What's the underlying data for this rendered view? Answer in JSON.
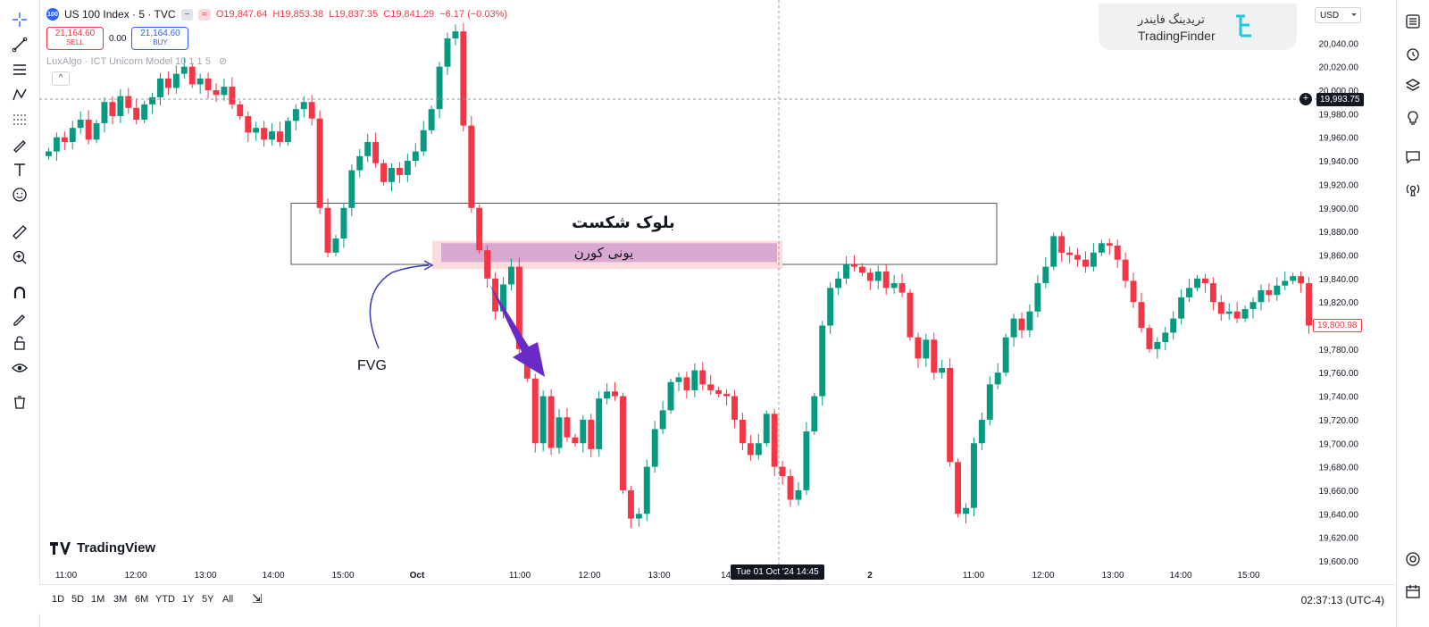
{
  "header": {
    "symbol_badge": "100",
    "title": "US 100 Index · 5 · TVC",
    "open": "O19,847.64",
    "high": "H19,853.38",
    "low": "L19,837.35",
    "close": "C19,841.29",
    "change": "−6.17 (−0.03%)"
  },
  "trade": {
    "sell_price": "21,164.60",
    "sell_label": "SELL",
    "spread": "0.00",
    "buy_price": "21,164.60",
    "buy_label": "BUY"
  },
  "indicator": {
    "label": "LuxAlgo · ICT Unicorn Model 10 1 1 5"
  },
  "brand": {
    "fa": "تریدینگ فایندر",
    "en": "TradingFinder"
  },
  "currency": "USD",
  "tv_logo": "TradingView",
  "bottom": {
    "ranges": [
      "1D",
      "5D",
      "1M",
      "3M",
      "6M",
      "YTD",
      "1Y",
      "5Y",
      "All"
    ],
    "clock": "02:37:13 (UTC-4)"
  },
  "crosshair_time": "Tue 01 Oct '24   14:45",
  "current_price_badge": "19,993.75",
  "last_price_badge": "19,800.98",
  "colors": {
    "up": "#089981",
    "down": "#f23645",
    "zone": "#d9a8d0",
    "arrow": "#6a2ac8"
  },
  "chart_data": {
    "type": "candlestick",
    "symbol": "US 100 Index",
    "interval": "5",
    "ylim": [
      19600,
      20060
    ],
    "y_ticks": [
      "20,040.00",
      "20,020.00",
      "20,000.00",
      "19,980.00",
      "19,960.00",
      "19,940.00",
      "19,920.00",
      "19,900.00",
      "19,880.00",
      "19,860.00",
      "19,840.00",
      "19,820.00",
      "19,800.00",
      "19,780.00",
      "19,760.00",
      "19,740.00",
      "19,720.00",
      "19,700.00",
      "19,680.00",
      "19,660.00",
      "19,640.00",
      "19,620.00",
      "19,600.00"
    ],
    "x_ticks": [
      "11:00",
      "12:00",
      "13:00",
      "14:00",
      "15:00",
      "Oct",
      "11:00",
      "12:00",
      "13:00",
      "14:",
      "2",
      "11:00",
      "12:00",
      "13:00",
      "14:00",
      "15:00"
    ],
    "annotations": {
      "breaker_block": "بلوک شکست",
      "unicorn_zone": "یونی کورن",
      "fvg": "FVG"
    },
    "closes": [
      19948,
      19960,
      19956,
      19968,
      19975,
      19958,
      19972,
      19990,
      19978,
      19995,
      19985,
      19975,
      19988,
      19994,
      20010,
      20002,
      20014,
      20020,
      20005,
      20010,
      20000,
      19996,
      20003,
      19988,
      19978,
      19964,
      19968,
      19958,
      19965,
      19956,
      19974,
      19984,
      19990,
      19976,
      19900,
      19862,
      19874,
      19900,
      19932,
      19944,
      19956,
      19938,
      19922,
      19934,
      19928,
      19940,
      19948,
      19966,
      19984,
      20020,
      20044,
      20050,
      19970,
      19900,
      19864,
      19840,
      19812,
      19835,
      19850,
      19780,
      19755,
      19700,
      19740,
      19696,
      19722,
      19705,
      19700,
      19720,
      19695,
      19738,
      19744,
      19740,
      19660,
      19636,
      19640,
      19680,
      19712,
      19728,
      19752,
      19756,
      19745,
      19762,
      19750,
      19745,
      19742,
      19740,
      19720,
      19700,
      19690,
      19700,
      19725,
      19680,
      19672,
      19652,
      19660,
      19710,
      19740,
      19800,
      19832,
      19840,
      19852,
      19850,
      19845,
      19838,
      19846,
      19832,
      19836,
      19828,
      19790,
      19772,
      19788,
      19760,
      19764,
      19684,
      19640,
      19645,
      19700,
      19720,
      19750,
      19760,
      19790,
      19806,
      19796,
      19812,
      19836,
      19850,
      19876,
      19862,
      19860,
      19856,
      19850,
      19862,
      19870,
      19868,
      19856,
      19838,
      19820,
      19798,
      19780,
      19786,
      19794,
      19806,
      19824,
      19832,
      19840,
      19836,
      19820,
      19810,
      19812,
      19806,
      19814,
      19820,
      19830,
      19826,
      19834,
      19838,
      19842,
      19836,
      19800
    ]
  }
}
